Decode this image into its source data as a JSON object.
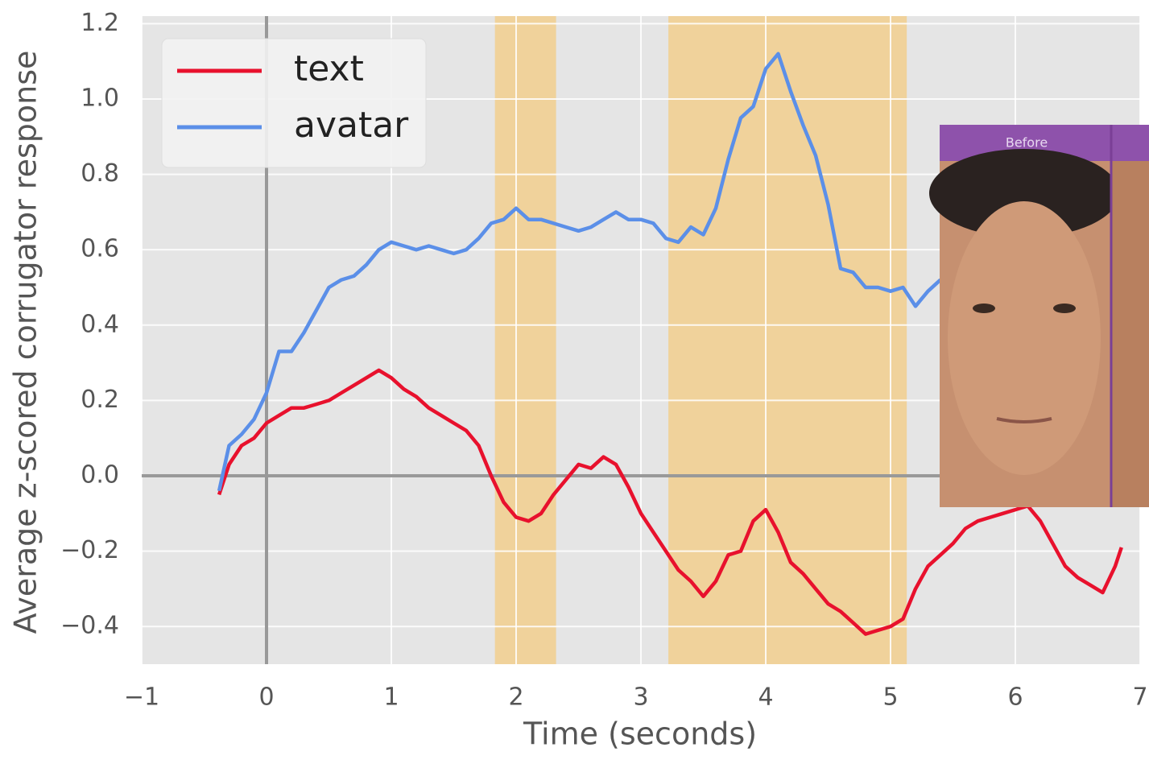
{
  "chart_data": {
    "type": "line",
    "xlabel": "Time (seconds)",
    "ylabel": "Average z-scored corrugator response",
    "x": [
      -0.38,
      -0.3,
      -0.2,
      -0.1,
      0,
      0.1,
      0.2,
      0.3,
      0.4,
      0.5,
      0.6,
      0.7,
      0.8,
      0.9,
      1.0,
      1.1,
      1.2,
      1.3,
      1.4,
      1.5,
      1.6,
      1.7,
      1.8,
      1.9,
      2.0,
      2.1,
      2.2,
      2.3,
      2.4,
      2.5,
      2.6,
      2.7,
      2.8,
      2.9,
      3.0,
      3.1,
      3.2,
      3.3,
      3.4,
      3.5,
      3.6,
      3.7,
      3.8,
      3.9,
      4.0,
      4.1,
      4.2,
      4.3,
      4.4,
      4.5,
      4.6,
      4.7,
      4.8,
      4.9,
      5.0,
      5.1,
      5.2,
      5.3,
      5.4,
      5.5,
      5.6,
      5.7,
      5.8,
      5.9,
      6.0,
      6.1,
      6.2,
      6.3,
      6.4,
      6.5,
      6.6,
      6.7,
      6.8,
      6.85
    ],
    "series": [
      {
        "name": "text",
        "color": "#e8112d",
        "values": [
          -0.05,
          0.03,
          0.08,
          0.1,
          0.14,
          0.16,
          0.18,
          0.18,
          0.19,
          0.2,
          0.22,
          0.24,
          0.26,
          0.28,
          0.26,
          0.23,
          0.21,
          0.18,
          0.16,
          0.14,
          0.12,
          0.08,
          0.0,
          -0.07,
          -0.11,
          -0.12,
          -0.1,
          -0.05,
          -0.01,
          0.03,
          0.02,
          0.05,
          0.03,
          -0.03,
          -0.1,
          -0.15,
          -0.2,
          -0.25,
          -0.28,
          -0.32,
          -0.28,
          -0.21,
          -0.2,
          -0.12,
          -0.09,
          -0.15,
          -0.23,
          -0.26,
          -0.3,
          -0.34,
          -0.36,
          -0.39,
          -0.42,
          -0.41,
          -0.4,
          -0.38,
          -0.3,
          -0.24,
          -0.21,
          -0.18,
          -0.14,
          -0.12,
          -0.11,
          -0.1,
          -0.09,
          -0.08,
          -0.12,
          -0.18,
          -0.24,
          -0.27,
          -0.29,
          -0.31,
          -0.24,
          -0.19
        ]
      },
      {
        "name": "avatar",
        "color": "#5b8fe8",
        "values": [
          -0.04,
          0.08,
          0.11,
          0.15,
          0.22,
          0.33,
          0.33,
          0.38,
          0.44,
          0.5,
          0.52,
          0.53,
          0.56,
          0.6,
          0.62,
          0.61,
          0.6,
          0.61,
          0.6,
          0.59,
          0.6,
          0.63,
          0.67,
          0.68,
          0.71,
          0.68,
          0.68,
          0.67,
          0.66,
          0.65,
          0.66,
          0.68,
          0.7,
          0.68,
          0.68,
          0.67,
          0.63,
          0.62,
          0.66,
          0.64,
          0.71,
          0.84,
          0.95,
          0.98,
          1.08,
          1.12,
          1.02,
          0.93,
          0.85,
          0.72,
          0.55,
          0.54,
          0.5,
          0.5,
          0.49,
          0.5,
          0.45,
          0.49,
          0.52,
          null,
          null,
          null,
          null,
          null,
          null,
          null,
          null,
          null,
          null,
          null,
          null,
          null,
          null,
          null
        ]
      }
    ],
    "xlim": [
      -1,
      7
    ],
    "ylim": [
      -0.5,
      1.22
    ],
    "xticks": [
      {
        "value": -1,
        "label": "−1"
      },
      0,
      1,
      2,
      3,
      4,
      5,
      6,
      7
    ],
    "yticks": [
      {
        "value": -0.4,
        "label": "−0.4"
      },
      {
        "value": -0.2,
        "label": "−0.2"
      },
      {
        "value": 0,
        "label": "0.0"
      },
      0.2,
      0.4,
      0.6,
      0.8,
      {
        "value": 1,
        "label": "1.0"
      },
      1.2
    ],
    "grid": true,
    "spans": [
      [
        1.83,
        2.32
      ],
      [
        3.22,
        5.13
      ]
    ],
    "span_color": "#f2cf8e",
    "reference_lines": {
      "x": 0,
      "y": 0
    },
    "legend": "upper left",
    "inset": {
      "label": "Before"
    }
  }
}
